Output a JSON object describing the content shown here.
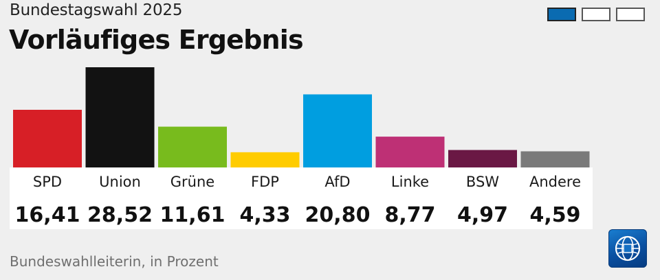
{
  "header": {
    "subtitle": "Bundestagswahl 2025",
    "title": "Vorläufiges Ergebnis"
  },
  "pager": {
    "count": 3,
    "active": 0
  },
  "footer": {
    "source": "Bundeswahlleiterin, in Prozent"
  },
  "logo": {
    "icon": "tagesschau-logo-icon"
  },
  "chart_data": {
    "type": "bar",
    "categories": [
      "SPD",
      "Union",
      "Grüne",
      "FDP",
      "AfD",
      "Linke",
      "BSW",
      "Andere"
    ],
    "values": [
      16.41,
      28.52,
      11.61,
      4.33,
      20.8,
      8.77,
      4.97,
      4.59
    ],
    "value_labels": [
      "16,41",
      "28,52",
      "11,61",
      "4,33",
      "20,80",
      "8,77",
      "4,97",
      "4,59"
    ],
    "colors": [
      "#d71f26",
      "#121212",
      "#78bb1d",
      "#ffcc00",
      "#009ee0",
      "#be3075",
      "#6a1844",
      "#7a7a7a"
    ],
    "title": "",
    "xlabel": "",
    "ylabel": "",
    "ylim": [
      0,
      28.52
    ],
    "grid": false,
    "legend": "none"
  }
}
